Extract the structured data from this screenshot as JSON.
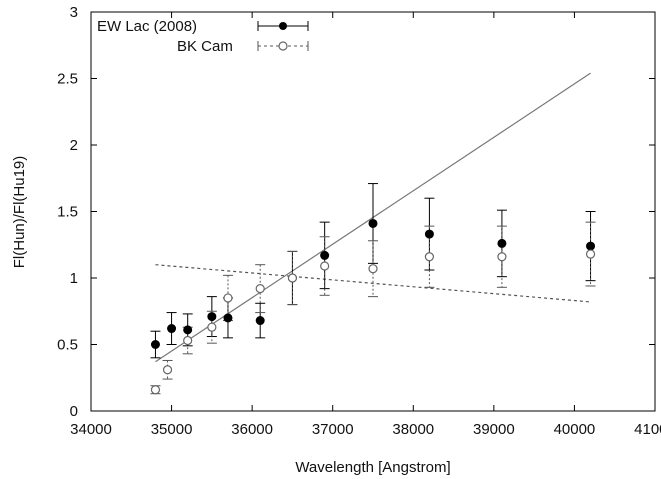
{
  "chart_data": {
    "type": "scatter",
    "title": "",
    "xlabel": "Wavelength [Angstrom]",
    "ylabel": "Fl(Hun)/Fl(Hu19)",
    "xlim": [
      34000,
      41000
    ],
    "ylim": [
      0,
      3
    ],
    "x_ticks": [
      34000,
      35000,
      36000,
      37000,
      38000,
      39000,
      40000,
      41000
    ],
    "y_ticks": [
      0,
      0.5,
      1,
      1.5,
      2,
      2.5,
      3
    ],
    "x_tick_labels": [
      "34000",
      "35000",
      "36000",
      "37000",
      "38000",
      "39000",
      "40000",
      "41000"
    ],
    "y_tick_labels": [
      "0",
      "0.5",
      "1",
      "1.5",
      "2",
      "2.5",
      "3"
    ],
    "grid": false,
    "legend": {
      "position": "top-left"
    },
    "series": [
      {
        "name": "EW Lac (2008)",
        "marker": "filled-circle",
        "color": "#000000",
        "x": [
          34800,
          35000,
          35200,
          35500,
          35700,
          36100,
          36500,
          36900,
          37500,
          38200,
          39100,
          40200
        ],
        "y": [
          0.5,
          0.62,
          0.61,
          0.71,
          0.7,
          0.68,
          1.0,
          1.17,
          1.41,
          1.33,
          1.26,
          1.24
        ],
        "err": [
          0.1,
          0.12,
          0.12,
          0.15,
          0.15,
          0.13,
          0.2,
          0.25,
          0.3,
          0.27,
          0.25,
          0.26
        ]
      },
      {
        "name": "BK Cam",
        "marker": "open-circle",
        "color": "#666666",
        "x": [
          34800,
          34950,
          35200,
          35500,
          35700,
          36100,
          36500,
          36900,
          37500,
          38200,
          39100,
          40200
        ],
        "y": [
          0.16,
          0.31,
          0.53,
          0.63,
          0.85,
          0.92,
          1.0,
          1.09,
          1.07,
          1.16,
          1.16,
          1.18
        ],
        "err": [
          0.03,
          0.07,
          0.1,
          0.12,
          0.17,
          0.18,
          0.2,
          0.22,
          0.21,
          0.23,
          0.23,
          0.24
        ]
      }
    ],
    "fit_lines": [
      {
        "series": "EW Lac (2008)",
        "style": "solid",
        "x": [
          34800,
          40200
        ],
        "y": [
          0.37,
          2.54
        ]
      },
      {
        "series": "BK Cam",
        "style": "dashed",
        "x": [
          34800,
          40200
        ],
        "y": [
          1.1,
          0.82
        ]
      }
    ]
  }
}
